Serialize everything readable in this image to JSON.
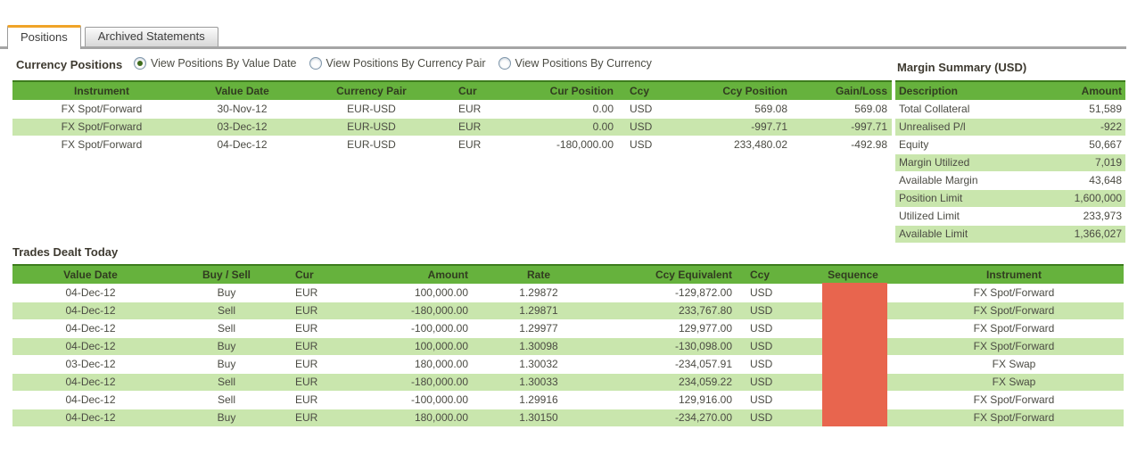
{
  "tabs": [
    {
      "label": "Positions",
      "active": true
    },
    {
      "label": "Archived Statements",
      "active": false
    }
  ],
  "currency_positions": {
    "title": "Currency Positions",
    "radios": [
      {
        "label": "View Positions By Value Date",
        "selected": true
      },
      {
        "label": "View Positions By Currency Pair",
        "selected": false
      },
      {
        "label": "View Positions By Currency",
        "selected": false
      }
    ],
    "table": {
      "columns": [
        "Instrument",
        "Value Date",
        "Currency Pair",
        "Cur",
        "Cur Position",
        "Ccy",
        "Ccy Position",
        "Gain/Loss"
      ],
      "rows": [
        [
          "FX Spot/Forward",
          "30-Nov-12",
          "EUR-USD",
          "EUR",
          "0.00",
          "USD",
          "569.08",
          "569.08"
        ],
        [
          "FX Spot/Forward",
          "03-Dec-12",
          "EUR-USD",
          "EUR",
          "0.00",
          "USD",
          "-997.71",
          "-997.71"
        ],
        [
          "FX Spot/Forward",
          "04-Dec-12",
          "EUR-USD",
          "EUR",
          "-180,000.00",
          "USD",
          "233,480.02",
          "-492.98"
        ]
      ]
    }
  },
  "margin_summary": {
    "title": "Margin Summary (USD)",
    "table": {
      "columns": [
        "Description",
        "Amount"
      ],
      "rows": [
        [
          "Total Collateral",
          "51,589"
        ],
        [
          "Unrealised P/l",
          "-922"
        ],
        [
          "Equity",
          "50,667"
        ],
        [
          "Margin Utilized",
          "7,019"
        ],
        [
          "Available Margin",
          "43,648"
        ],
        [
          "Position Limit",
          "1,600,000"
        ],
        [
          "Utilized Limit",
          "233,973"
        ],
        [
          "Available Limit",
          "1,366,027"
        ]
      ]
    }
  },
  "trades_dealt_today": {
    "title": "Trades Dealt Today",
    "table": {
      "columns": [
        "Value Date",
        "Buy / Sell",
        "Cur",
        "Amount",
        "Rate",
        "Ccy Equivalent",
        "Ccy",
        "Sequence",
        "Instrument"
      ],
      "rows": [
        [
          "04-Dec-12",
          "Buy",
          "EUR",
          "100,000.00",
          "1.29872",
          "-129,872.00",
          "USD",
          "",
          "FX Spot/Forward"
        ],
        [
          "04-Dec-12",
          "Sell",
          "EUR",
          "-180,000.00",
          "1.29871",
          "233,767.80",
          "USD",
          "",
          "FX Spot/Forward"
        ],
        [
          "04-Dec-12",
          "Sell",
          "EUR",
          "-100,000.00",
          "1.29977",
          "129,977.00",
          "USD",
          "",
          "FX Spot/Forward"
        ],
        [
          "04-Dec-12",
          "Buy",
          "EUR",
          "100,000.00",
          "1.30098",
          "-130,098.00",
          "USD",
          "",
          "FX Spot/Forward"
        ],
        [
          "03-Dec-12",
          "Buy",
          "EUR",
          "180,000.00",
          "1.30032",
          "-234,057.91",
          "USD",
          "",
          "FX Swap"
        ],
        [
          "04-Dec-12",
          "Sell",
          "EUR",
          "-180,000.00",
          "1.30033",
          "234,059.22",
          "USD",
          "",
          "FX Swap"
        ],
        [
          "04-Dec-12",
          "Sell",
          "EUR",
          "-100,000.00",
          "1.29916",
          "129,916.00",
          "USD",
          "",
          "FX Spot/Forward"
        ],
        [
          "04-Dec-12",
          "Buy",
          "EUR",
          "180,000.00",
          "1.30150",
          "-234,270.00",
          "USD",
          "",
          "FX Spot/Forward"
        ]
      ]
    },
    "sequence_column_note": "values hidden by red overlay"
  },
  "colors": {
    "table_header_green": "#66b23d",
    "table_header_border_green": "#3d7c1d",
    "alt_row_green": "#c9e6ad",
    "redaction_red": "#e8654e",
    "active_tab_accent_orange": "#f0a428"
  }
}
